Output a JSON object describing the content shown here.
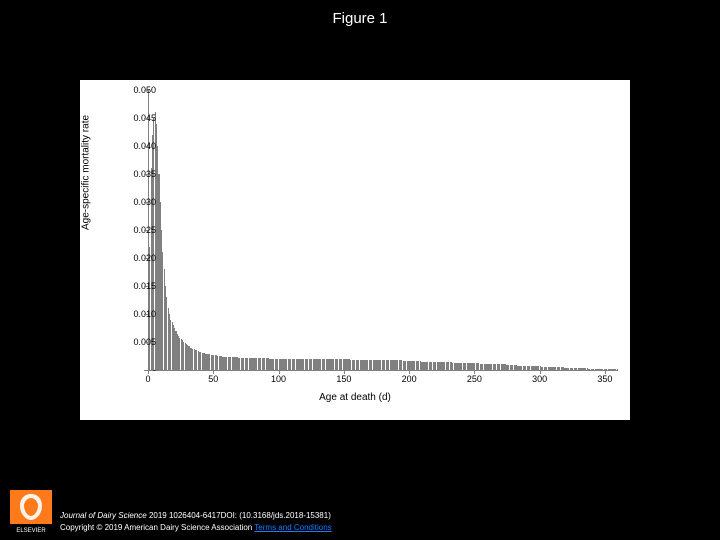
{
  "title": "Figure 1",
  "chart": {
    "type": "bar",
    "x_axis_label": "Age at death (d)",
    "y_axis_label": "Age-specific mortality rate",
    "background_color": "#ffffff",
    "bar_color": "#808080",
    "axis_color": "#808080",
    "tick_font_size": 9,
    "label_font_size": 10,
    "ylim": [
      0,
      0.05
    ],
    "y_ticks": [
      0,
      0.005,
      0.01,
      0.015,
      0.02,
      0.025,
      0.03,
      0.035,
      0.04,
      0.045,
      0.05
    ],
    "y_tick_labels": [
      "-",
      "0.005",
      "0.010",
      "0.015",
      "0.020",
      "0.025",
      "0.030",
      "0.035",
      "0.040",
      "0.045",
      "0.050"
    ],
    "xlim": [
      0,
      360
    ],
    "x_ticks": [
      0,
      50,
      100,
      150,
      200,
      250,
      300,
      350
    ],
    "x_tick_labels": [
      "0",
      "50",
      "100",
      "150",
      "200",
      "250",
      "300",
      "350"
    ],
    "values": [
      0.006,
      0.022,
      0.036,
      0.042,
      0.045,
      0.046,
      0.044,
      0.04,
      0.035,
      0.03,
      0.025,
      0.021,
      0.018,
      0.015,
      0.013,
      0.011,
      0.01,
      0.009,
      0.0085,
      0.008,
      0.0075,
      0.007,
      0.0065,
      0.006,
      0.0058,
      0.0055,
      0.0053,
      0.005,
      0.0048,
      0.0046,
      0.0044,
      0.0042,
      0.004,
      0.0039,
      0.0038,
      0.0037,
      0.0036,
      0.0035,
      0.0034,
      0.0033,
      0.0032,
      0.0031,
      0.003,
      0.003,
      0.0029,
      0.0029,
      0.0028,
      0.0028,
      0.0027,
      0.0027,
      0.0026,
      0.0026,
      0.0026,
      0.0025,
      0.0025,
      0.0025,
      0.0025,
      0.0024,
      0.0024,
      0.0024,
      0.0024,
      0.0024,
      0.0023,
      0.0023,
      0.0023,
      0.0023,
      0.0023,
      0.0023,
      0.0023,
      0.0022,
      0.0022,
      0.0022,
      0.0022,
      0.0022,
      0.0022,
      0.0022,
      0.0022,
      0.0022,
      0.0022,
      0.0022,
      0.0021,
      0.0021,
      0.0021,
      0.0021,
      0.0021,
      0.0021,
      0.0021,
      0.0021,
      0.0021,
      0.0021,
      0.0021,
      0.0021,
      0.0021,
      0.002,
      0.002,
      0.002,
      0.002,
      0.002,
      0.002,
      0.002,
      0.002,
      0.002,
      0.002,
      0.002,
      0.002,
      0.002,
      0.002,
      0.002,
      0.002,
      0.002,
      0.002,
      0.002,
      0.002,
      0.002,
      0.002,
      0.002,
      0.002,
      0.002,
      0.002,
      0.002,
      0.002,
      0.002,
      0.002,
      0.002,
      0.002,
      0.002,
      0.002,
      0.002,
      0.002,
      0.002,
      0.002,
      0.002,
      0.0019,
      0.0019,
      0.0019,
      0.0019,
      0.0019,
      0.0019,
      0.0019,
      0.0019,
      0.0019,
      0.0019,
      0.0019,
      0.0019,
      0.0019,
      0.0019,
      0.0019,
      0.0019,
      0.0019,
      0.0019,
      0.0019,
      0.0019,
      0.0019,
      0.0019,
      0.0019,
      0.0018,
      0.0018,
      0.0018,
      0.0018,
      0.0018,
      0.0018,
      0.0018,
      0.0018,
      0.0018,
      0.0018,
      0.0018,
      0.0018,
      0.0018,
      0.0018,
      0.0018,
      0.0018,
      0.0018,
      0.0018,
      0.0018,
      0.0018,
      0.0018,
      0.0018,
      0.0018,
      0.0018,
      0.0018,
      0.0017,
      0.0017,
      0.0017,
      0.0017,
      0.0017,
      0.0017,
      0.0017,
      0.0017,
      0.0017,
      0.0017,
      0.0017,
      0.0017,
      0.0017,
      0.0017,
      0.0017,
      0.0016,
      0.0016,
      0.0016,
      0.0016,
      0.0016,
      0.0016,
      0.0016,
      0.0016,
      0.0016,
      0.0016,
      0.0016,
      0.0016,
      0.0016,
      0.0016,
      0.0015,
      0.0015,
      0.0015,
      0.0015,
      0.0015,
      0.0015,
      0.0015,
      0.0015,
      0.0015,
      0.0015,
      0.0015,
      0.0015,
      0.0015,
      0.0014,
      0.0014,
      0.0014,
      0.0014,
      0.0014,
      0.0014,
      0.0014,
      0.0014,
      0.0014,
      0.0014,
      0.0014,
      0.0013,
      0.0013,
      0.0013,
      0.0013,
      0.0013,
      0.0013,
      0.0013,
      0.0013,
      0.0013,
      0.0013,
      0.0013,
      0.0012,
      0.0012,
      0.0012,
      0.0012,
      0.0012,
      0.0012,
      0.0012,
      0.0012,
      0.0012,
      0.0012,
      0.0011,
      0.0011,
      0.0011,
      0.0011,
      0.0011,
      0.0011,
      0.0011,
      0.0011,
      0.0011,
      0.0011,
      0.001,
      0.001,
      0.001,
      0.001,
      0.001,
      0.001,
      0.001,
      0.001,
      0.001,
      0.001,
      0.0009,
      0.0009,
      0.0009,
      0.0009,
      0.0009,
      0.0009,
      0.0009,
      0.0009,
      0.0009,
      0.0008,
      0.0008,
      0.0008,
      0.0008,
      0.0008,
      0.0008,
      0.0008,
      0.0008,
      0.0008,
      0.0007,
      0.0007,
      0.0007,
      0.0007,
      0.0007,
      0.0007,
      0.0007,
      0.0007,
      0.0007,
      0.0006,
      0.0006,
      0.0006,
      0.0006,
      0.0006,
      0.0006,
      0.0006,
      0.0006,
      0.0006,
      0.0005,
      0.0005,
      0.0005,
      0.0005,
      0.0005,
      0.0005,
      0.0005,
      0.0005,
      0.0005,
      0.0004,
      0.0004,
      0.0004,
      0.0004,
      0.0004,
      0.0004,
      0.0004,
      0.0004,
      0.0004,
      0.0003,
      0.0003,
      0.0003,
      0.0003,
      0.0003,
      0.0003,
      0.0003,
      0.0003,
      0.0003,
      0.0002,
      0.0002,
      0.0002,
      0.0002,
      0.0002,
      0.0002,
      0.0002,
      0.0002,
      0.0002,
      0.0001,
      0.0001,
      0.0001,
      0.0001,
      0.0001,
      0.0001,
      0.0001,
      0.0001,
      0.0001,
      0.0001,
      0.0001,
      0.0001,
      0.0001,
      0.0001
    ]
  },
  "footer": {
    "journal": "Journal of Dairy Science",
    "citation_rest": " 2019 1026404-6417DOI: (10.3168/jds.2018-15381)",
    "copyright": "Copyright © 2019 American Dairy Science Association ",
    "terms_label": "Terms and Conditions",
    "publisher": "ELSEVIER",
    "logo_fill": "#ff7a1a",
    "logo_text_color": "#ffffff",
    "link_color": "#1a7bff"
  }
}
